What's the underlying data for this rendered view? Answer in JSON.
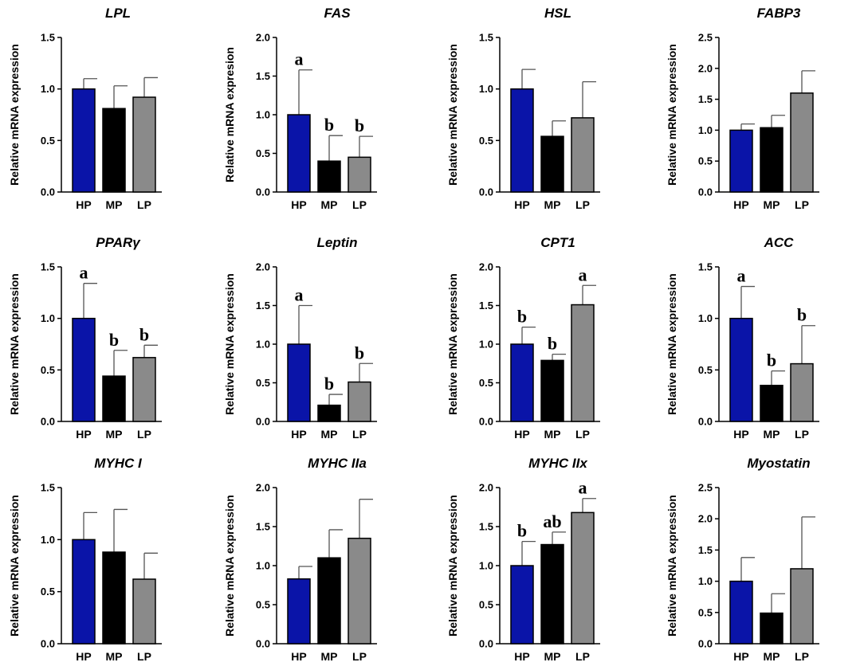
{
  "groups": [
    "HP",
    "MP",
    "LP"
  ],
  "colors": {
    "HP": "#0a14a8",
    "MP": "#000000",
    "LP": "#8a8a8a"
  },
  "chart_data": [
    {
      "type": "bar",
      "title": "LPL",
      "ylabel": "Relative mRNA expression",
      "categories": [
        "HP",
        "MP",
        "LP"
      ],
      "values": [
        1.0,
        0.81,
        0.92
      ],
      "errors": [
        0.1,
        0.22,
        0.19
      ],
      "letters": [
        "",
        "",
        ""
      ],
      "ylim": [
        0,
        1.5
      ],
      "ticks": [
        "0.0",
        "0.5",
        "1.0",
        "1.5"
      ]
    },
    {
      "type": "bar",
      "title": "FAS",
      "ylabel": "Relative mRNA expresion",
      "categories": [
        "HP",
        "MP",
        "LP"
      ],
      "values": [
        1.0,
        0.4,
        0.45
      ],
      "errors": [
        0.58,
        0.33,
        0.27
      ],
      "letters": [
        "a",
        "b",
        "b"
      ],
      "ylim": [
        0,
        2.0
      ],
      "ticks": [
        "0.0",
        "0.5",
        "1.0",
        "1.5",
        "2.0"
      ]
    },
    {
      "type": "bar",
      "title": "HSL",
      "ylabel": "Relative mRNA expression",
      "categories": [
        "HP",
        "MP",
        "LP"
      ],
      "values": [
        1.0,
        0.54,
        0.72
      ],
      "errors": [
        0.19,
        0.15,
        0.35
      ],
      "letters": [
        "",
        "",
        ""
      ],
      "ylim": [
        0,
        1.5
      ],
      "ticks": [
        "0.0",
        "0.5",
        "1.0",
        "1.5"
      ]
    },
    {
      "type": "bar",
      "title": "FABP3",
      "ylabel": "Relative mRNA expression",
      "categories": [
        "HP",
        "MP",
        "LP"
      ],
      "values": [
        1.0,
        1.04,
        1.6
      ],
      "errors": [
        0.1,
        0.2,
        0.36
      ],
      "letters": [
        "",
        "",
        ""
      ],
      "ylim": [
        0,
        2.5
      ],
      "ticks": [
        "0.0",
        "0.5",
        "1.0",
        "1.5",
        "2.0",
        "2.5"
      ]
    },
    {
      "type": "bar",
      "title": "PPARγ",
      "ylabel": "Relative mRNA expression",
      "categories": [
        "HP",
        "MP",
        "LP"
      ],
      "values": [
        1.0,
        0.44,
        0.62
      ],
      "errors": [
        0.34,
        0.25,
        0.12
      ],
      "letters": [
        "a",
        "b",
        "b"
      ],
      "ylim": [
        0,
        1.5
      ],
      "ticks": [
        "0.0",
        "0.5",
        "1.0",
        "1.5"
      ]
    },
    {
      "type": "bar",
      "title": "Leptin",
      "ylabel": "Relative mRNA expression",
      "categories": [
        "HP",
        "MP",
        "LP"
      ],
      "values": [
        1.0,
        0.21,
        0.51
      ],
      "errors": [
        0.5,
        0.14,
        0.24
      ],
      "letters": [
        "a",
        "b",
        "b"
      ],
      "ylim": [
        0,
        2.0
      ],
      "ticks": [
        "0.0",
        "0.5",
        "1.0",
        "1.5",
        "2.0"
      ]
    },
    {
      "type": "bar",
      "title": "CPT1",
      "ylabel": "Relative mRNA expression",
      "categories": [
        "HP",
        "MP",
        "LP"
      ],
      "values": [
        1.0,
        0.79,
        1.51
      ],
      "errors": [
        0.22,
        0.08,
        0.25
      ],
      "letters": [
        "b",
        "b",
        "a"
      ],
      "ylim": [
        0,
        2.0
      ],
      "ticks": [
        "0.0",
        "0.5",
        "1.0",
        "1.5",
        "2.0"
      ]
    },
    {
      "type": "bar",
      "title": "ACC",
      "ylabel": "Relative mRNA expression",
      "categories": [
        "HP",
        "MP",
        "LP"
      ],
      "values": [
        1.0,
        0.35,
        0.56
      ],
      "errors": [
        0.31,
        0.14,
        0.37
      ],
      "letters": [
        "a",
        "b",
        "b"
      ],
      "ylim": [
        0,
        1.5
      ],
      "ticks": [
        "0.0",
        "0.5",
        "1.0",
        "1.5"
      ]
    },
    {
      "type": "bar",
      "title": "MYHC I",
      "ylabel": "Relative mRNA expression",
      "categories": [
        "HP",
        "MP",
        "LP"
      ],
      "values": [
        1.0,
        0.88,
        0.62
      ],
      "errors": [
        0.26,
        0.41,
        0.25
      ],
      "letters": [
        "",
        "",
        ""
      ],
      "ylim": [
        0,
        1.5
      ],
      "ticks": [
        "0.0",
        "0.5",
        "1.0",
        "1.5"
      ]
    },
    {
      "type": "bar",
      "title": "MYHC IIa",
      "ylabel": "Relative mRNA expression",
      "categories": [
        "HP",
        "MP",
        "LP"
      ],
      "values": [
        0.83,
        1.1,
        1.35
      ],
      "errors": [
        0.16,
        0.36,
        0.5
      ],
      "letters": [
        "",
        "",
        ""
      ],
      "ylim": [
        0,
        2.0
      ],
      "ticks": [
        "0.0",
        "0.5",
        "1.0",
        "1.5",
        "2.0"
      ]
    },
    {
      "type": "bar",
      "title": "MYHC IIx",
      "ylabel": "Relative mRNA expression",
      "categories": [
        "HP",
        "MP",
        "LP"
      ],
      "values": [
        1.0,
        1.27,
        1.68
      ],
      "errors": [
        0.31,
        0.16,
        0.18
      ],
      "letters": [
        "b",
        "ab",
        "a"
      ],
      "ylim": [
        0,
        2.0
      ],
      "ticks": [
        "0.0",
        "0.5",
        "1.0",
        "1.5",
        "2.0"
      ]
    },
    {
      "type": "bar",
      "title": "Myostatin",
      "ylabel": "Relative mRNA expression",
      "categories": [
        "HP",
        "MP",
        "LP"
      ],
      "values": [
        1.0,
        0.49,
        1.2
      ],
      "errors": [
        0.38,
        0.31,
        0.83
      ],
      "letters": [
        "",
        "",
        ""
      ],
      "ylim": [
        0,
        2.5
      ],
      "ticks": [
        "0.0",
        "0.5",
        "1.0",
        "1.5",
        "2.0",
        "2.5"
      ]
    }
  ]
}
